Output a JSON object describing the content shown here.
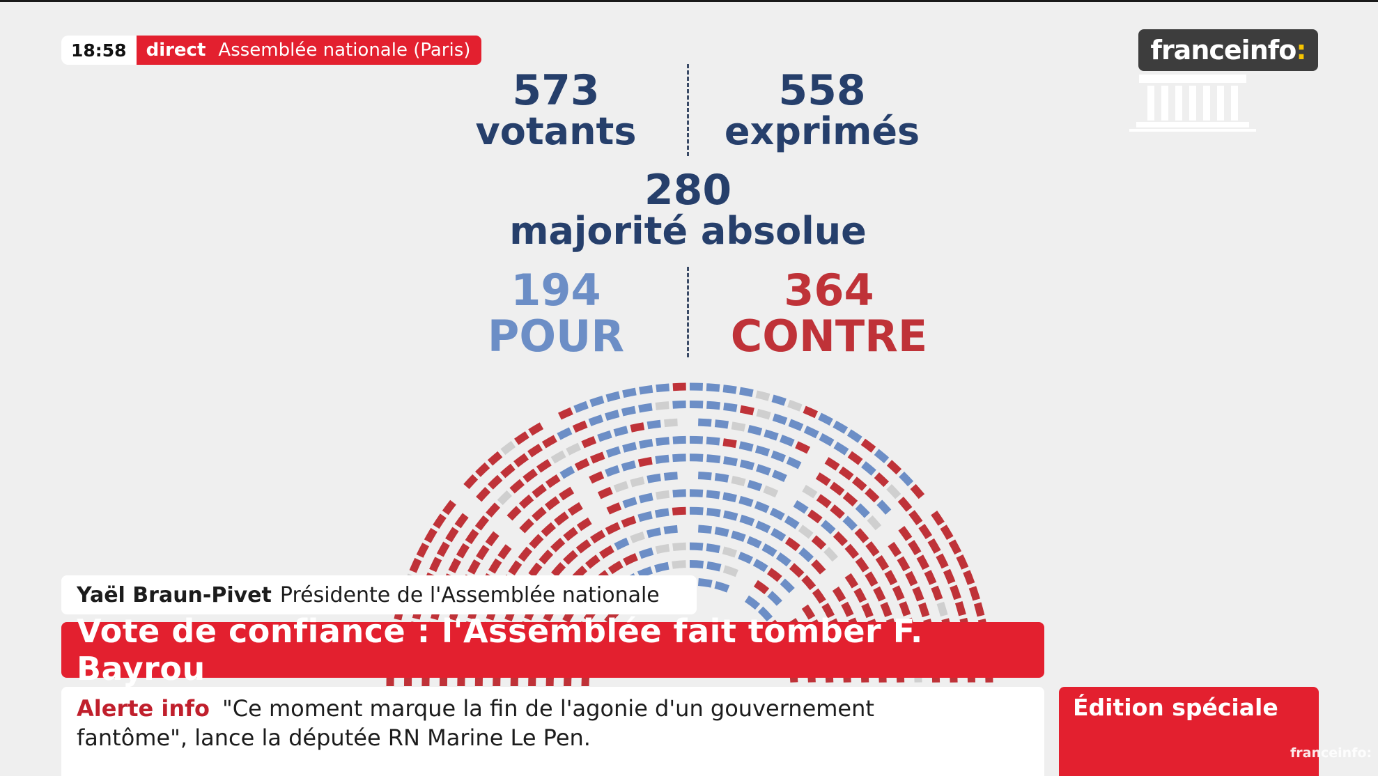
{
  "live_bar": {
    "time": "18:58",
    "direct": "direct",
    "location": "Assemblée nationale (Paris)"
  },
  "logo": {
    "text": "franceinfo",
    "colon": ":"
  },
  "stats": {
    "votants": {
      "value": "573",
      "label": "votants"
    },
    "exprimes": {
      "value": "558",
      "label": "exprimés"
    },
    "majorite": {
      "value": "280",
      "label": "majorité absolue"
    },
    "pour": {
      "value": "194",
      "label": "POUR"
    },
    "contre": {
      "value": "364",
      "label": "CONTRE"
    }
  },
  "colors": {
    "pour": "#6c8ec6",
    "contre": "#bf3238",
    "other": "#cfcfcf",
    "accent": "#e3202f",
    "navy": "#263f6b"
  },
  "chart_data": {
    "type": "hemicycle",
    "series": [
      {
        "name": "POUR",
        "value": 194
      },
      {
        "name": "CONTRE",
        "value": 364
      }
    ]
  },
  "nameplate": {
    "name": "Yaël Braun-Pivet",
    "title": "Présidente de l'Assemblée nationale"
  },
  "headline": "Vote de confiance : l'Assemblée fait tomber F. Bayrou",
  "alert": {
    "tag": "Alerte info",
    "line1": "\"Ce moment marque la fin de l'agonie d'un gouvernement",
    "line2": "fantôme\", lance la députée RN Marine Le Pen."
  },
  "edition": "Édition spéciale",
  "watermark": "franceinfo:"
}
